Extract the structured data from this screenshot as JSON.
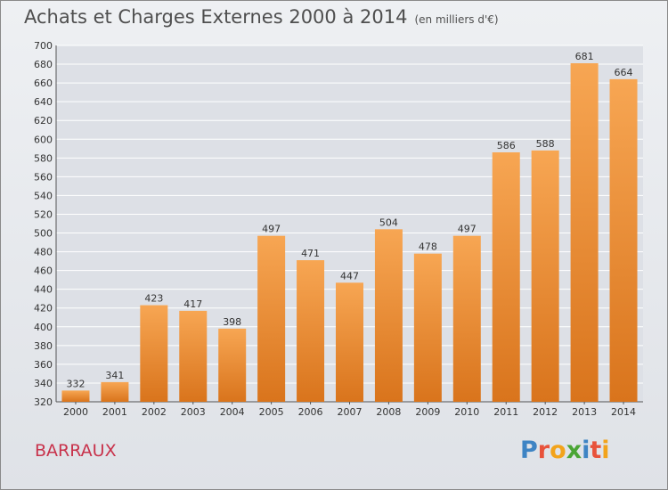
{
  "header": {
    "title": "Achats et Charges Externes 2000 à 2014",
    "unit": "(en milliers d'€)"
  },
  "footer": {
    "place": "BARRAUX",
    "logo": "Proxiti"
  },
  "colors": {
    "bar_top": "#f7a653",
    "bar_bottom": "#d9741c",
    "title": "#4f4f4f",
    "place": "#c8324b",
    "grid": "#ffffff"
  },
  "chart_data": {
    "type": "bar",
    "title": "Achats et Charges Externes 2000 à 2014",
    "subtitle": "(en milliers d'€)",
    "xlabel": "",
    "ylabel": "",
    "categories": [
      "2000",
      "2001",
      "2002",
      "2003",
      "2004",
      "2005",
      "2006",
      "2007",
      "2008",
      "2009",
      "2010",
      "2011",
      "2012",
      "2013",
      "2014"
    ],
    "values": [
      332,
      341,
      423,
      417,
      398,
      497,
      471,
      447,
      504,
      478,
      497,
      586,
      588,
      681,
      664
    ],
    "ylim": [
      320,
      700
    ],
    "yticks": [
      320,
      340,
      360,
      380,
      400,
      420,
      440,
      460,
      480,
      500,
      520,
      540,
      560,
      580,
      600,
      620,
      640,
      660,
      680,
      700
    ],
    "grid": true,
    "data_labels": true
  }
}
